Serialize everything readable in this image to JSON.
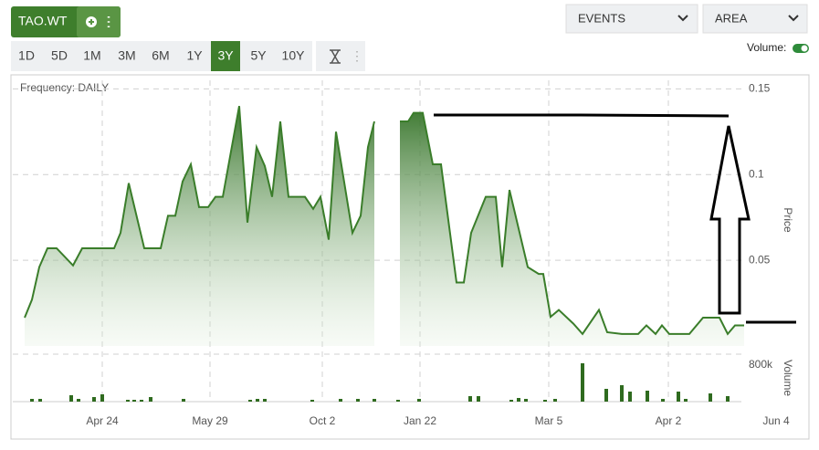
{
  "ui": {
    "ticker": "TAO.WT",
    "ranges": [
      "1D",
      "5D",
      "1M",
      "3M",
      "6M",
      "1Y",
      "3Y",
      "5Y",
      "10Y"
    ],
    "active_range_index": 6,
    "events_menu": "EVENTS",
    "style_menu": "AREA",
    "volume_toggle": "Volume:"
  },
  "chart_data": [
    {
      "type": "area",
      "subtitle": "Frequency: DAILY",
      "y_label": "Price",
      "color": "#3a7d2a",
      "grid": true,
      "x": [
        1.25,
        3.25,
        5.25,
        7.5,
        10,
        14.5,
        17,
        25.75,
        27.5,
        29.75,
        34,
        38.5,
        40.5,
        42.5,
        44.5,
        46.75,
        49,
        51.5,
        53.5,
        55.5,
        60,
        62.25,
        64.75,
        67,
        69,
        71.25,
        73.5,
        78,
        80.25,
        82.25,
        84.5,
        86.5,
        91,
        93.25,
        95.25,
        97,
        100,
        104,
        106.25,
        107.75,
        110.25,
        113,
        115.25,
        119.5,
        121.5,
        123.5,
        127.5,
        130.25,
        132,
        134,
        139,
        142,
        143.25,
        145.25,
        147.5,
        151.5,
        154,
        158.5,
        160.75,
        164.75,
        169.25,
        171.5,
        174,
        175.75,
        177.75,
        183.25,
        187,
        191.5,
        193.75,
        195.75,
        198.25
      ],
      "values": [
        0.0165,
        0.027,
        0.046,
        0.057,
        0.057,
        0.047,
        0.057,
        0.057,
        0.066,
        0.095,
        0.057,
        0.057,
        0.076,
        0.076,
        0.096,
        0.106,
        0.081,
        0.081,
        0.087,
        0.087,
        0.14,
        0.072,
        0.116,
        0.105,
        0.087,
        0.131,
        0.087,
        0.087,
        0.08,
        0.087,
        0.062,
        0.125,
        0.066,
        0.076,
        0.116,
        0.131,
        null,
        0.131,
        0.131,
        0.136,
        0.136,
        0.106,
        0.106,
        0.037,
        0.037,
        0.066,
        0.087,
        0.087,
        0.046,
        0.091,
        0.046,
        0.042,
        0.042,
        0.017,
        0.021,
        0.013,
        0.007,
        0.021,
        0.008,
        0.007,
        0.007,
        0.012,
        0.007,
        0.012,
        0.007,
        0.007,
        0.0165,
        0.0165,
        0.007,
        0.012,
        0.012
      ],
      "xlim": [
        0,
        210
      ],
      "xticks": [
        {
          "value": 22.5,
          "label": "Apr 24"
        },
        {
          "value": 52,
          "label": "May 29"
        },
        {
          "value": 82.75,
          "label": "Oct 2"
        },
        {
          "value": 109.5,
          "label": "Jan 22"
        },
        {
          "value": 144.75,
          "label": "Mar 5"
        },
        {
          "value": 177.5,
          "label": "Apr 2"
        },
        {
          "value": 207,
          "label": "Jun 4"
        }
      ],
      "ylim": [
        0,
        0.155
      ],
      "yticks": [
        0.05,
        0.1,
        0.15
      ]
    },
    {
      "type": "bar",
      "y_label": "Volume",
      "color": "#2f6b1f",
      "x": [
        3.25,
        5.5,
        14,
        16,
        20.25,
        22.5,
        29.5,
        31.25,
        33.25,
        35.75,
        44.75,
        63,
        65,
        67,
        80,
        87.75,
        92.5,
        97,
        103.5,
        109.25,
        123.25,
        125.5,
        134.5,
        136.5,
        138.5,
        143.75,
        146.5,
        154,
        160.5,
        164.75,
        167,
        171.75,
        176,
        180.25,
        182.25,
        189,
        193.75
      ],
      "values": [
        60000,
        60000,
        140000,
        60000,
        100000,
        160000,
        40000,
        40000,
        40000,
        100000,
        60000,
        40000,
        60000,
        60000,
        40000,
        60000,
        60000,
        60000,
        40000,
        60000,
        120000,
        120000,
        40000,
        80000,
        60000,
        40000,
        60000,
        840000,
        280000,
        360000,
        220000,
        240000,
        60000,
        220000,
        60000,
        180000,
        120000
      ],
      "xlim": [
        0,
        210
      ],
      "ylim": [
        0,
        880000
      ],
      "yticks": [
        {
          "value": 800000,
          "label": "800k"
        }
      ]
    }
  ]
}
